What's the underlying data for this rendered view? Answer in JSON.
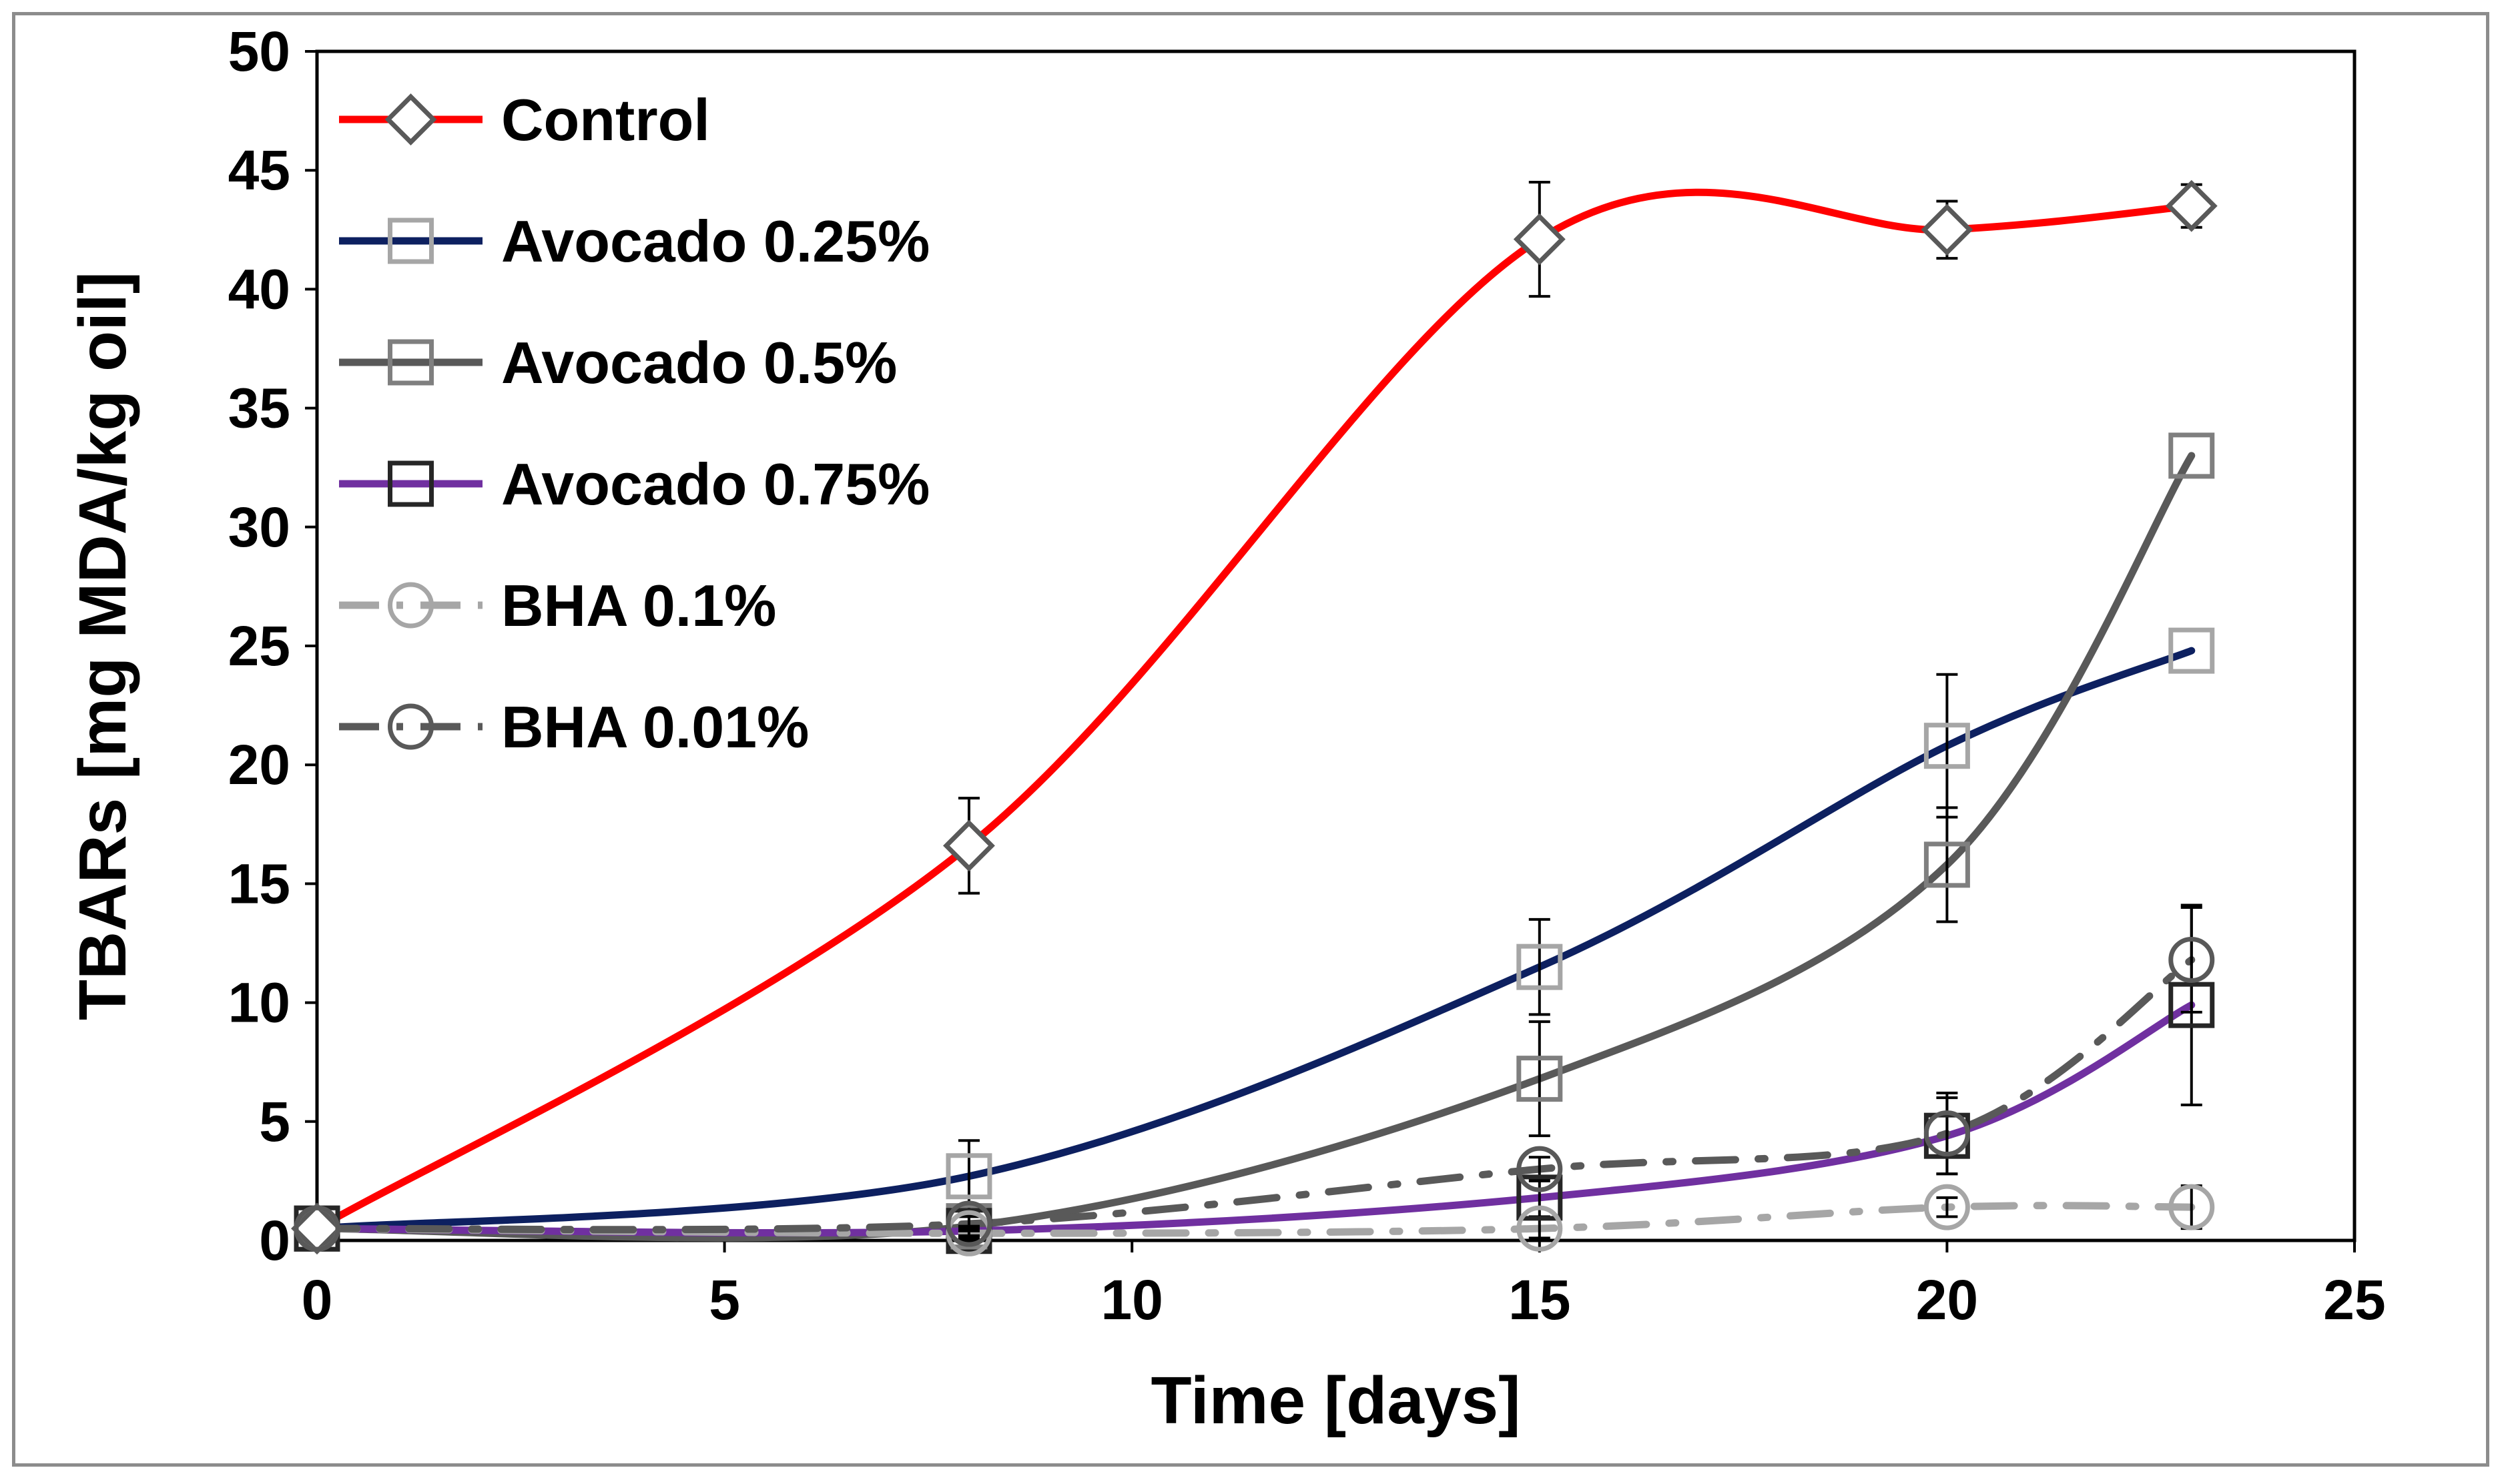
{
  "chart_data": {
    "type": "line",
    "title": "",
    "xlabel": "Time [days]",
    "ylabel": "TBARs [mg MDA/kg oil]",
    "xlim": [
      0,
      25
    ],
    "ylim": [
      0,
      50
    ],
    "xticks": [
      0,
      5,
      10,
      15,
      20,
      25
    ],
    "yticks": [
      0,
      5,
      10,
      15,
      20,
      25,
      30,
      35,
      40,
      45,
      50
    ],
    "grid": false,
    "legend_position": "top-left",
    "x": [
      0,
      8,
      15,
      20,
      23
    ],
    "series": [
      {
        "name": "Control",
        "values": [
          0.5,
          16.6,
          42.1,
          42.5,
          43.5
        ],
        "errors": [
          0,
          2.0,
          2.4,
          1.2,
          0.9
        ],
        "color": "#ff0000",
        "line": "solid",
        "marker": "diamond",
        "marker_color": "#595959"
      },
      {
        "name": "Avocado 0.25%",
        "values": [
          0.5,
          2.7,
          11.5,
          20.8,
          24.8
        ],
        "errors": [
          0,
          1.5,
          2.0,
          3.0,
          0
        ],
        "color": "#0d2060",
        "line": "solid",
        "marker": "square",
        "marker_color": "#a6a6a6"
      },
      {
        "name": "Avocado 0.5%",
        "values": [
          0.5,
          0.6,
          6.8,
          15.8,
          33.0
        ],
        "errors": [
          0,
          0.5,
          2.4,
          2.4,
          0
        ],
        "color": "#595959",
        "line": "solid",
        "marker": "square",
        "marker_color": "#7f7f7f"
      },
      {
        "name": "Avocado 0.75%",
        "values": [
          0.5,
          0.4,
          1.8,
          4.4,
          9.9
        ],
        "errors": [
          0,
          0.2,
          0.8,
          1.6,
          4.2
        ],
        "color": "#7030a0",
        "line": "solid",
        "marker": "square",
        "marker_color": "#262626"
      },
      {
        "name": "BHA 0.1%",
        "values": [
          0.5,
          0.3,
          0.5,
          1.4,
          1.4
        ],
        "errors": [
          0,
          0.2,
          0.4,
          0.4,
          0.9
        ],
        "color": "#a6a6a6",
        "line": "dashdot",
        "marker": "circle",
        "marker_color": "#a6a6a6"
      },
      {
        "name": "BHA 0.01%",
        "values": [
          0.5,
          0.7,
          3.0,
          4.5,
          11.8
        ],
        "errors": [
          0,
          0.3,
          0.5,
          1.7,
          2.2
        ],
        "color": "#595959",
        "line": "dashdot",
        "marker": "circle",
        "marker_color": "#595959"
      }
    ]
  }
}
